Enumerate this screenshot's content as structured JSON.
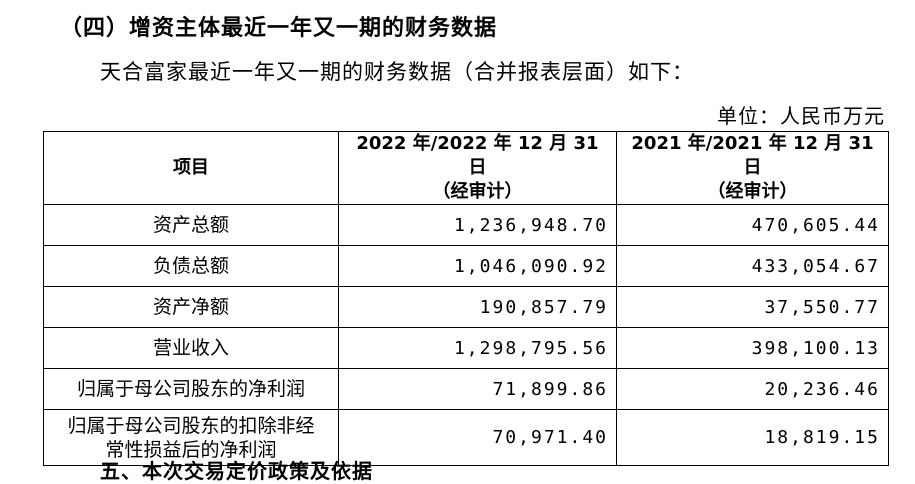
{
  "section_heading": "（四）增资主体最近一年又一期的财务数据",
  "intro_text": "天合富家最近一年又一期的财务数据（合并报表层面）如下：",
  "unit_text": "单位：人民币万元",
  "table": {
    "headers": [
      {
        "line1": "项目",
        "line2": ""
      },
      {
        "line1": "2022 年/2022 年 12 月 31 日",
        "line2": "（经审计）"
      },
      {
        "line1": "2021 年/2021 年 12 月 31 日",
        "line2": "（经审计）"
      }
    ],
    "rows": [
      {
        "item": "资产总额",
        "v2022": "1,236,948.70",
        "v2021": "470,605.44"
      },
      {
        "item": "负债总额",
        "v2022": "1,046,090.92",
        "v2021": "433,054.67"
      },
      {
        "item": "资产净额",
        "v2022": "190,857.79",
        "v2021": "37,550.77"
      },
      {
        "item": "营业收入",
        "v2022": "1,298,795.56",
        "v2021": "398,100.13"
      },
      {
        "item": "归属于母公司股东的净利润",
        "v2022": "71,899.86",
        "v2021": "20,236.46"
      },
      {
        "item": "归属于母公司股东的扣除非经常性损益后的净利润",
        "item_line1": "归属于母公司股东的扣除非经",
        "item_line2": "常性损益后的净利润",
        "v2022": "70,971.40",
        "v2021": "18,819.15"
      }
    ]
  },
  "cutoff_text": "五、本次交易定价政策及依据"
}
